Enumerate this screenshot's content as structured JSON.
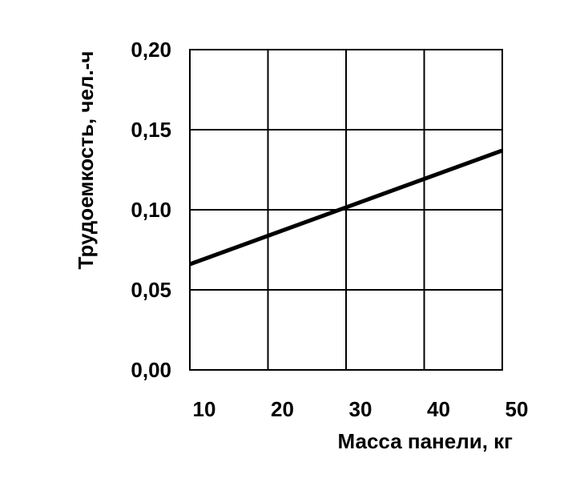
{
  "chart_data": {
    "type": "line",
    "xlabel": "Масса панели, кг",
    "ylabel": "Трудоемкость, чел.-ч",
    "xlim": [
      10,
      50
    ],
    "ylim": [
      0,
      0.2
    ],
    "x_ticks": [
      10,
      20,
      30,
      40,
      50
    ],
    "y_ticks": [
      0.0,
      0.05,
      0.1,
      0.15,
      0.2
    ],
    "x_tick_labels": [
      "10",
      "20",
      "30",
      "40",
      "50"
    ],
    "y_tick_labels": [
      "0,00",
      "0,05",
      "0,10",
      "0,15",
      "0,20"
    ],
    "grid": true,
    "legend": "none",
    "series": [
      {
        "x": [
          10,
          50
        ],
        "y": [
          0.066,
          0.137
        ],
        "color": "#000000"
      }
    ]
  }
}
